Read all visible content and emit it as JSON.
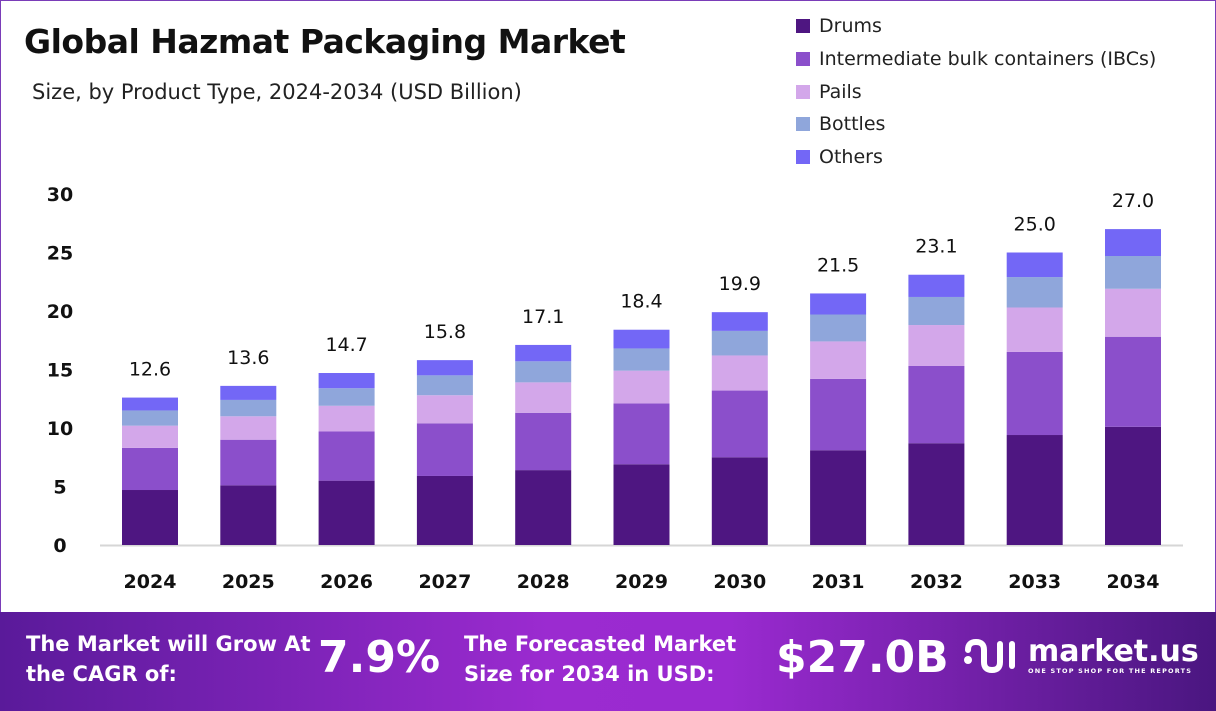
{
  "title": "Global Hazmat Packaging Market",
  "subtitle": "Size, by Product Type, 2024-2034 (USD Billion)",
  "chart_data": {
    "type": "bar",
    "stacked": true,
    "categories": [
      "2024",
      "2025",
      "2026",
      "2027",
      "2028",
      "2029",
      "2030",
      "2031",
      "2032",
      "2033",
      "2034"
    ],
    "series": [
      {
        "name": "Drums",
        "color": "#4E1681",
        "values": [
          4.7,
          5.1,
          5.5,
          5.9,
          6.4,
          6.9,
          7.5,
          8.1,
          8.7,
          9.4,
          10.1
        ]
      },
      {
        "name": "Intermediate bulk containers (IBCs)",
        "color": "#8B4FCB",
        "values": [
          3.6,
          3.9,
          4.2,
          4.5,
          4.9,
          5.2,
          5.7,
          6.1,
          6.6,
          7.1,
          7.7
        ]
      },
      {
        "name": "Pails",
        "color": "#D3A7EA",
        "values": [
          1.9,
          2.0,
          2.2,
          2.4,
          2.6,
          2.8,
          3.0,
          3.2,
          3.5,
          3.8,
          4.1
        ]
      },
      {
        "name": "Bottles",
        "color": "#8FA6DB",
        "values": [
          1.3,
          1.4,
          1.5,
          1.7,
          1.8,
          1.9,
          2.1,
          2.3,
          2.4,
          2.6,
          2.8
        ]
      },
      {
        "name": "Others",
        "color": "#7367F6",
        "values": [
          1.1,
          1.2,
          1.3,
          1.3,
          1.4,
          1.6,
          1.6,
          1.8,
          1.9,
          2.1,
          2.3
        ]
      }
    ],
    "totals": [
      "12.6",
      "13.6",
      "14.7",
      "15.8",
      "17.1",
      "18.4",
      "19.9",
      "21.5",
      "23.1",
      "25.0",
      "27.0"
    ],
    "yticks": [
      "0",
      "5",
      "10",
      "15",
      "20",
      "25",
      "30"
    ],
    "ylim": [
      0,
      30
    ],
    "grid": false,
    "legend_position": "top-right"
  },
  "footer": {
    "cagr_label": "The Market will Grow At the CAGR of:",
    "cagr_value": "7.9%",
    "forecast_label": "The Forecasted Market Size for 2034 in USD:",
    "forecast_value": "$27.0B",
    "logo_name": "market.us",
    "logo_tagline": "ONE STOP SHOP FOR THE REPORTS"
  }
}
